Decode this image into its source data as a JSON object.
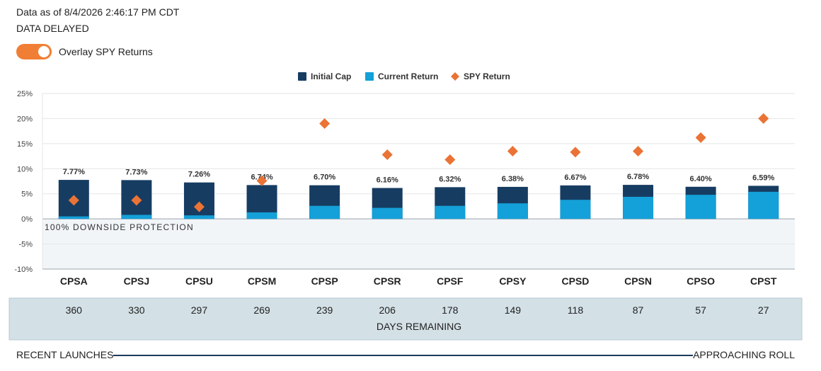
{
  "header": {
    "data_as_of": "Data as of 8/4/2026 2:46:17 PM CDT",
    "delay_note": "DATA DELAYED"
  },
  "overlay_toggle": {
    "label": "Overlay SPY Returns",
    "on": true
  },
  "colors": {
    "initial_cap": "#173c61",
    "current_return": "#14a0d8",
    "spy_return": "#ea7335",
    "toggle": "#f07f35",
    "days_band": "#d3e0e6",
    "negative_zone": "#f1f5f8"
  },
  "chart_data": {
    "type": "bar",
    "categories": [
      "CPSA",
      "CPSJ",
      "CPSU",
      "CPSM",
      "CPSP",
      "CPSR",
      "CPSF",
      "CPSY",
      "CPSD",
      "CPSN",
      "CPSO",
      "CPST"
    ],
    "series": [
      {
        "name": "Initial Cap",
        "values": [
          7.77,
          7.73,
          7.26,
          6.74,
          6.7,
          6.16,
          6.32,
          6.38,
          6.67,
          6.78,
          6.4,
          6.59
        ]
      },
      {
        "name": "Current Return",
        "values": [
          0.5,
          0.8,
          0.7,
          1.3,
          2.6,
          2.2,
          2.6,
          3.1,
          3.8,
          4.4,
          4.8,
          5.4
        ]
      },
      {
        "name": "SPY Return",
        "values": [
          3.7,
          3.7,
          2.4,
          7.6,
          19.0,
          12.8,
          11.8,
          13.5,
          13.3,
          13.5,
          16.2,
          20.0
        ]
      }
    ],
    "value_labels": [
      "7.77%",
      "7.73%",
      "7.26%",
      "6.74%",
      "6.70%",
      "6.16%",
      "6.32%",
      "6.38%",
      "6.67%",
      "6.78%",
      "6.40%",
      "6.59%"
    ],
    "y_ticks": [
      "25%",
      "20%",
      "15%",
      "10%",
      "5%",
      "0%",
      "-5%",
      "-10%"
    ],
    "y_tick_values": [
      25,
      20,
      15,
      10,
      5,
      0,
      -5,
      -10
    ],
    "ylim": [
      -10,
      25
    ],
    "protection_label": "100% DOWNSIDE PROTECTION",
    "days_remaining": [
      360,
      330,
      297,
      269,
      239,
      206,
      178,
      149,
      118,
      87,
      57,
      27
    ],
    "days_label": "DAYS REMAINING",
    "legend_position": "top-center",
    "grid": true
  },
  "footer": {
    "left": "RECENT LAUNCHES",
    "right": "APPROACHING ROLL"
  }
}
